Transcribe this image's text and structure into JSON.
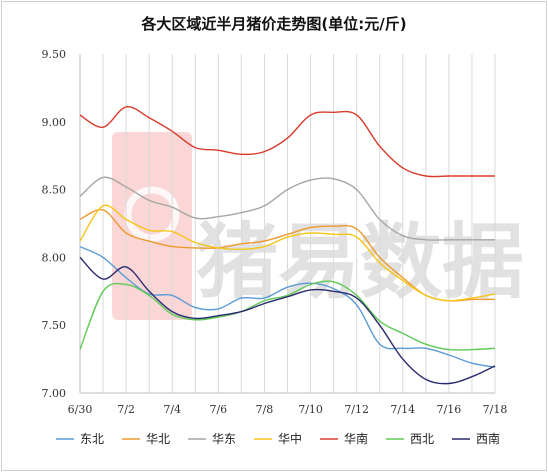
{
  "chart_data": {
    "type": "line",
    "title": "各大区域近半月猪价走势图(单位:元/斤)",
    "watermark_text": "猪易数据",
    "xlabel": "",
    "ylabel": "",
    "ylim": [
      7.0,
      9.5
    ],
    "yticks": [
      9.5,
      9.0,
      8.5,
      8.0,
      7.5,
      7.0
    ],
    "ytick_labels": [
      "9.50",
      "9.00",
      "8.50",
      "8.00",
      "7.50",
      "7.00"
    ],
    "xticks": [
      "6/30",
      "7/2",
      "7/4",
      "7/6",
      "7/8",
      "7/10",
      "7/12",
      "7/14",
      "7/16",
      "7/18"
    ],
    "x": [
      "6/30",
      "7/1",
      "7/2",
      "7/3",
      "7/4",
      "7/5",
      "7/6",
      "7/7",
      "7/8",
      "7/9",
      "7/10",
      "7/11",
      "7/12",
      "7/13",
      "7/14",
      "7/15",
      "7/16",
      "7/17",
      "7/18"
    ],
    "grid": "vertical",
    "legend_position": "bottom",
    "series": [
      {
        "name": "东北",
        "color": "#5b9bd5",
        "values": [
          8.08,
          8.0,
          7.85,
          7.73,
          7.72,
          7.63,
          7.62,
          7.7,
          7.7,
          7.78,
          7.81,
          7.77,
          7.65,
          7.36,
          7.33,
          7.33,
          7.28,
          7.22,
          7.19
        ]
      },
      {
        "name": "华北",
        "color": "#ed9a2e",
        "values": [
          8.28,
          8.35,
          8.18,
          8.12,
          8.08,
          8.07,
          8.07,
          8.1,
          8.12,
          8.17,
          8.22,
          8.23,
          8.21,
          8.0,
          7.85,
          7.72,
          7.68,
          7.69,
          7.69
        ]
      },
      {
        "name": "华东",
        "color": "#a5a5a5",
        "values": [
          8.45,
          8.59,
          8.52,
          8.42,
          8.37,
          8.29,
          8.3,
          8.33,
          8.38,
          8.5,
          8.57,
          8.58,
          8.5,
          8.28,
          8.16,
          8.13,
          8.13,
          8.13,
          8.13
        ]
      },
      {
        "name": "华中",
        "color": "#f5c518",
        "values": [
          8.12,
          8.38,
          8.28,
          8.2,
          8.19,
          8.11,
          8.07,
          8.06,
          8.08,
          8.15,
          8.18,
          8.17,
          8.15,
          7.96,
          7.83,
          7.72,
          7.68,
          7.7,
          7.73
        ]
      },
      {
        "name": "华南",
        "color": "#d93b2b",
        "values": [
          9.05,
          8.96,
          9.11,
          9.03,
          8.93,
          8.81,
          8.79,
          8.76,
          8.78,
          8.88,
          9.05,
          9.07,
          9.05,
          8.82,
          8.66,
          8.6,
          8.6,
          8.6,
          8.6
        ]
      },
      {
        "name": "西北",
        "color": "#5fca54",
        "values": [
          7.32,
          7.75,
          7.8,
          7.72,
          7.58,
          7.54,
          7.56,
          7.6,
          7.68,
          7.72,
          7.8,
          7.82,
          7.72,
          7.53,
          7.44,
          7.36,
          7.32,
          7.32,
          7.33
        ]
      },
      {
        "name": "西南",
        "color": "#2a2a6e",
        "values": [
          8.0,
          7.84,
          7.93,
          7.75,
          7.6,
          7.55,
          7.57,
          7.6,
          7.66,
          7.71,
          7.76,
          7.75,
          7.7,
          7.5,
          7.25,
          7.1,
          7.07,
          7.12,
          7.2
        ]
      }
    ]
  }
}
